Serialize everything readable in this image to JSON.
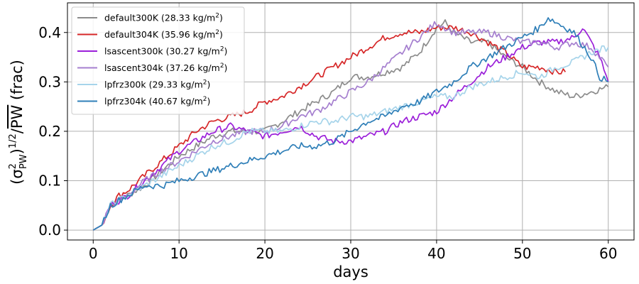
{
  "chart_data": {
    "type": "line",
    "xlabel": "days",
    "ylabel": "(σ²_PW)^1/2 / PW (frac)",
    "ylabel_parts": {
      "open": "(σ",
      "sup": "2",
      "sub": "PW",
      "close": ")",
      "exp": "1/2",
      "slash": "/",
      "pw": "PW",
      "frac": " (frac)"
    },
    "xlim": [
      -3,
      63
    ],
    "ylim": [
      -0.02,
      0.46
    ],
    "xticks": [
      0,
      10,
      20,
      30,
      40,
      50,
      60
    ],
    "xtick_labels": [
      "0",
      "10",
      "20",
      "30",
      "40",
      "50",
      "60"
    ],
    "yticks": [
      0.0,
      0.1,
      0.2,
      0.3,
      0.4
    ],
    "ytick_labels": [
      "0.0",
      "0.1",
      "0.2",
      "0.3",
      "0.4"
    ],
    "grid": true,
    "legend_position": "upper-left",
    "series": [
      {
        "name": "default300K (28.33 kg/m²)",
        "legend": {
          "base": "default300K (28.33 kg/m",
          "sup": "2",
          "tail": ")"
        },
        "color": "#8c8c8c",
        "x": [
          0,
          1,
          2,
          3,
          4,
          5,
          6,
          8,
          10,
          12,
          14,
          16,
          18,
          20,
          22,
          24,
          26,
          28,
          30,
          32,
          34,
          36,
          38,
          40,
          41,
          42,
          44,
          46,
          48,
          50,
          52,
          54,
          56,
          58,
          60
        ],
        "y": [
          0,
          0.01,
          0.05,
          0.06,
          0.07,
          0.08,
          0.09,
          0.12,
          0.15,
          0.17,
          0.19,
          0.2,
          0.2,
          0.2,
          0.22,
          0.24,
          0.26,
          0.28,
          0.31,
          0.31,
          0.32,
          0.33,
          0.36,
          0.41,
          0.42,
          0.4,
          0.38,
          0.38,
          0.35,
          0.33,
          0.3,
          0.28,
          0.27,
          0.28,
          0.29
        ]
      },
      {
        "name": "default304K (35.96 kg/m²)",
        "legend": {
          "base": "default304K (35.96 kg/m",
          "sup": "2",
          "tail": ")"
        },
        "color": "#d62728",
        "x": [
          0,
          1,
          2,
          3,
          4,
          6,
          8,
          10,
          12,
          14,
          16,
          18,
          20,
          22,
          24,
          26,
          28,
          30,
          32,
          34,
          36,
          38,
          40,
          42,
          44,
          46,
          48,
          50,
          52,
          54,
          55
        ],
        "y": [
          0,
          0.01,
          0.05,
          0.07,
          0.08,
          0.11,
          0.14,
          0.17,
          0.2,
          0.22,
          0.23,
          0.24,
          0.26,
          0.27,
          0.29,
          0.31,
          0.33,
          0.35,
          0.37,
          0.39,
          0.4,
          0.4,
          0.41,
          0.41,
          0.4,
          0.38,
          0.36,
          0.33,
          0.33,
          0.32,
          0.32
        ]
      },
      {
        "name": "lsascent300k (30.27 kg/m²)",
        "legend": {
          "base": "lsascent300k (30.27 kg/m",
          "sup": "2",
          "tail": ")"
        },
        "color": "#9b1fd9",
        "x": [
          0,
          1,
          2,
          3,
          4,
          6,
          8,
          10,
          12,
          14,
          16,
          18,
          20,
          22,
          24,
          26,
          28,
          30,
          32,
          34,
          36,
          38,
          40,
          42,
          44,
          46,
          48,
          50,
          52,
          54,
          56,
          57,
          58,
          59,
          60
        ],
        "y": [
          0,
          0.01,
          0.05,
          0.06,
          0.07,
          0.1,
          0.13,
          0.16,
          0.18,
          0.2,
          0.21,
          0.2,
          0.19,
          0.2,
          0.21,
          0.19,
          0.18,
          0.18,
          0.19,
          0.2,
          0.22,
          0.23,
          0.24,
          0.27,
          0.3,
          0.33,
          0.35,
          0.37,
          0.38,
          0.38,
          0.39,
          0.41,
          0.38,
          0.35,
          0.3
        ]
      },
      {
        "name": "lsascent304k (37.26 kg/m²)",
        "legend": {
          "base": "lsascent304k (37.26 kg/m",
          "sup": "2",
          "tail": ")"
        },
        "color": "#a57fcf",
        "x": [
          0,
          1,
          2,
          3,
          4,
          6,
          8,
          10,
          12,
          14,
          16,
          18,
          20,
          22,
          24,
          26,
          28,
          30,
          32,
          34,
          36,
          38,
          40,
          42,
          44,
          46,
          48,
          50,
          52,
          54,
          56,
          58,
          60
        ],
        "y": [
          0,
          0.01,
          0.05,
          0.06,
          0.07,
          0.1,
          0.12,
          0.14,
          0.16,
          0.18,
          0.19,
          0.2,
          0.2,
          0.21,
          0.23,
          0.24,
          0.26,
          0.28,
          0.3,
          0.33,
          0.36,
          0.39,
          0.42,
          0.4,
          0.4,
          0.4,
          0.39,
          0.38,
          0.38,
          0.37,
          0.38,
          0.37,
          0.33
        ]
      },
      {
        "name": "lpfrz300k (29.33 kg/m²)",
        "legend": {
          "base": "lpfrz300k (29.33 kg/m",
          "sup": "2",
          "tail": ")"
        },
        "color": "#a6d4ea",
        "x": [
          0,
          1,
          2,
          3,
          4,
          6,
          8,
          10,
          12,
          14,
          16,
          18,
          20,
          22,
          24,
          26,
          28,
          30,
          32,
          34,
          36,
          38,
          40,
          42,
          44,
          46,
          48,
          50,
          52,
          54,
          56,
          58,
          60
        ],
        "y": [
          0,
          0.01,
          0.05,
          0.06,
          0.07,
          0.09,
          0.11,
          0.13,
          0.15,
          0.17,
          0.18,
          0.2,
          0.2,
          0.2,
          0.21,
          0.22,
          0.22,
          0.23,
          0.23,
          0.24,
          0.25,
          0.26,
          0.27,
          0.27,
          0.29,
          0.3,
          0.31,
          0.32,
          0.31,
          0.33,
          0.34,
          0.36,
          0.37
        ]
      },
      {
        "name": "lpfrz304k (40.67 kg/m²)",
        "legend": {
          "base": "lpfrz304k (40.67 kg/m",
          "sup": "2",
          "tail": ")"
        },
        "color": "#2f7fb8",
        "x": [
          0,
          1,
          2,
          3,
          4,
          6,
          8,
          10,
          12,
          14,
          16,
          18,
          20,
          22,
          24,
          26,
          28,
          30,
          32,
          34,
          36,
          38,
          40,
          42,
          44,
          46,
          48,
          50,
          52,
          53,
          54,
          56,
          58,
          59,
          60
        ],
        "y": [
          0,
          0.01,
          0.05,
          0.06,
          0.07,
          0.09,
          0.09,
          0.1,
          0.11,
          0.12,
          0.13,
          0.14,
          0.15,
          0.16,
          0.17,
          0.17,
          0.18,
          0.2,
          0.22,
          0.23,
          0.25,
          0.26,
          0.28,
          0.3,
          0.33,
          0.35,
          0.37,
          0.39,
          0.41,
          0.43,
          0.42,
          0.4,
          0.35,
          0.31,
          0.3
        ]
      }
    ]
  }
}
